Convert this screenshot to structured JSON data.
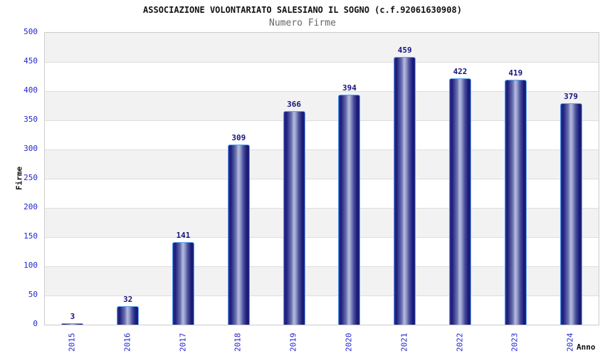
{
  "header": {
    "title": "ASSOCIAZIONE VOLONTARIATO SALESIANO IL SOGNO (c.f.92061630908)",
    "subtitle": "Numero Firme"
  },
  "chart_data": {
    "type": "bar",
    "title": "ASSOCIAZIONE VOLONTARIATO SALESIANO IL SOGNO (c.f.92061630908)",
    "subtitle": "Numero Firme",
    "categories": [
      "2015",
      "2016",
      "2017",
      "2018",
      "2019",
      "2020",
      "2021",
      "2022",
      "2023",
      "2024"
    ],
    "values": [
      3,
      32,
      141,
      309,
      366,
      394,
      459,
      422,
      419,
      379
    ],
    "xlabel": "Anno",
    "ylabel": "Firme",
    "ylim": [
      0,
      500
    ],
    "y_ticks": [
      0,
      50,
      100,
      150,
      200,
      250,
      300,
      350,
      400,
      450,
      500
    ],
    "grid": "horizontal",
    "legend": "none",
    "background_bands": "alternating gray/white horizontal stripes every 50 units, gray at top"
  },
  "colors": {
    "bar_dark": "#181870",
    "bar_light": "#b7bcda",
    "bar_border": "#59a1f2",
    "tick_label": "#2424cd",
    "value_label": "#15157d",
    "band_gray": "#f2f2f2",
    "band_white": "#ffffff",
    "grid_line": "#dddddd",
    "plot_border": "#cccccc",
    "title": "#111111",
    "subtitle": "#666666",
    "axis_title": "#111111"
  }
}
